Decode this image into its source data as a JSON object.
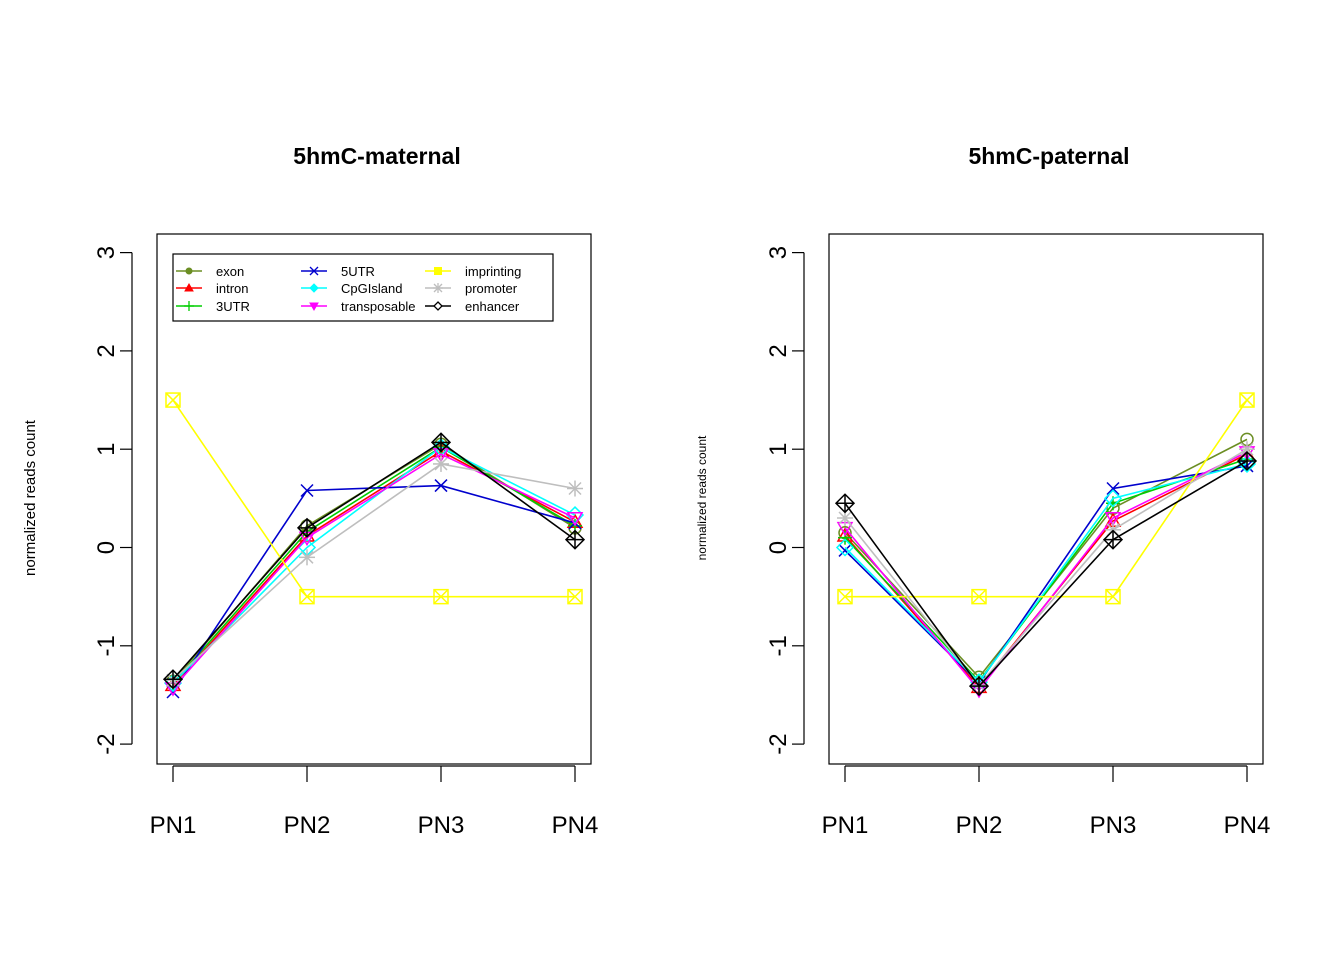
{
  "chart_data": [
    {
      "type": "line",
      "title": "5hmC-maternal",
      "xlabel": "",
      "ylabel": "normalized reads count",
      "categories": [
        "PN1",
        "PN2",
        "PN3",
        "PN4"
      ],
      "ylim": [
        -2.2,
        3.2
      ],
      "yticks": [
        "-2",
        "-1",
        "0",
        "1",
        "2",
        "3"
      ],
      "grid": false,
      "legend": "top-left, inside plot, 3 columns",
      "series": [
        {
          "name": "exon",
          "color": "#6B8E23",
          "marker": "circle-open",
          "values": [
            -1.36,
            0.22,
            1.05,
            0.2
          ]
        },
        {
          "name": "intron",
          "color": "#FF0000",
          "marker": "triangle-up",
          "values": [
            -1.4,
            0.12,
            0.98,
            0.26
          ]
        },
        {
          "name": "3UTR",
          "color": "#00CD00",
          "marker": "plus",
          "values": [
            -1.38,
            0.16,
            1.02,
            0.22
          ]
        },
        {
          "name": "5UTR",
          "color": "#0000CD",
          "marker": "x",
          "values": [
            -1.47,
            0.58,
            0.63,
            0.25
          ]
        },
        {
          "name": "CpGIsland",
          "color": "#00FFFF",
          "marker": "diamond",
          "values": [
            -1.38,
            0.0,
            1.02,
            0.33
          ]
        },
        {
          "name": "transposable",
          "color": "#FF00FF",
          "marker": "triangle-down",
          "values": [
            -1.43,
            0.1,
            0.95,
            0.3
          ]
        },
        {
          "name": "imprinting",
          "color": "#FFFF00",
          "marker": "square-x",
          "values": [
            1.5,
            -0.5,
            -0.5,
            -0.5
          ]
        },
        {
          "name": "promoter",
          "color": "#BEBEBE",
          "marker": "asterisk",
          "values": [
            -1.35,
            -0.1,
            0.85,
            0.6
          ]
        },
        {
          "name": "enhancer",
          "color": "#000000",
          "marker": "diamond-plus",
          "values": [
            -1.34,
            0.2,
            1.07,
            0.08
          ]
        }
      ]
    },
    {
      "type": "line",
      "title": "5hmC-paternal",
      "xlabel": "",
      "ylabel": "normalized reads count",
      "categories": [
        "PN1",
        "PN2",
        "PN3",
        "PN4"
      ],
      "ylim": [
        -2.2,
        3.2
      ],
      "yticks": [
        "-2",
        "-1",
        "0",
        "1",
        "2",
        "3"
      ],
      "grid": false,
      "legend": "none",
      "series": [
        {
          "name": "exon",
          "color": "#6B8E23",
          "marker": "circle-open",
          "values": [
            0.15,
            -1.32,
            0.4,
            1.1
          ]
        },
        {
          "name": "intron",
          "color": "#FF0000",
          "marker": "triangle-up",
          "values": [
            0.12,
            -1.42,
            0.27,
            0.95
          ]
        },
        {
          "name": "3UTR",
          "color": "#00CD00",
          "marker": "plus",
          "values": [
            0.1,
            -1.36,
            0.45,
            0.9
          ]
        },
        {
          "name": "5UTR",
          "color": "#0000CD",
          "marker": "x",
          "values": [
            -0.03,
            -1.38,
            0.6,
            0.83
          ]
        },
        {
          "name": "CpGIsland",
          "color": "#00FFFF",
          "marker": "diamond",
          "values": [
            0.0,
            -1.37,
            0.5,
            0.85
          ]
        },
        {
          "name": "transposable",
          "color": "#FF00FF",
          "marker": "triangle-down",
          "values": [
            0.2,
            -1.45,
            0.3,
            0.97
          ]
        },
        {
          "name": "imprinting",
          "color": "#FFFF00",
          "marker": "square-x",
          "values": [
            -0.5,
            -0.5,
            -0.5,
            1.5
          ]
        },
        {
          "name": "promoter",
          "color": "#BEBEBE",
          "marker": "asterisk",
          "values": [
            0.3,
            -1.4,
            0.18,
            1.0
          ]
        },
        {
          "name": "enhancer",
          "color": "#000000",
          "marker": "diamond-plus",
          "values": [
            0.45,
            -1.41,
            0.08,
            0.88
          ]
        }
      ]
    }
  ]
}
